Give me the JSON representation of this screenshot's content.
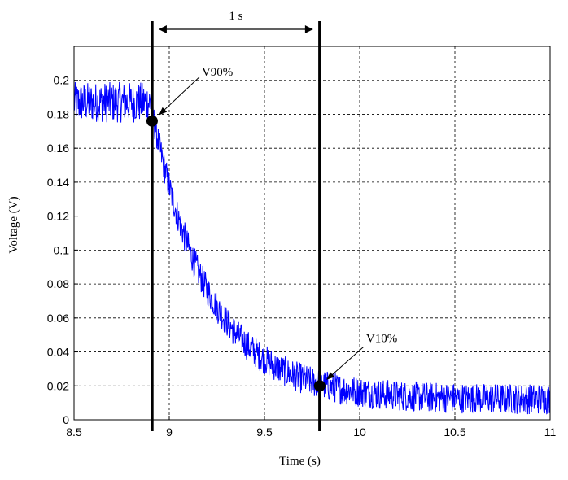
{
  "chart_data": {
    "type": "line",
    "xlabel": "Time (s)",
    "ylabel": "Voltage (V)",
    "xlim": [
      8.5,
      11
    ],
    "ylim": [
      0,
      0.22
    ],
    "x_ticks": [
      8.5,
      9,
      9.5,
      10,
      10.5,
      11
    ],
    "x_tick_labels": [
      "8.5",
      "9",
      "9.5",
      "10",
      "10.5",
      "11"
    ],
    "y_ticks": [
      0,
      0.02,
      0.04,
      0.06,
      0.08,
      0.1,
      0.12,
      0.14,
      0.16,
      0.18,
      0.2
    ],
    "y_tick_labels": [
      "0",
      "0.02",
      "0.04",
      "0.06",
      "0.08",
      "0.1",
      "0.12",
      "0.14",
      "0.16",
      "0.18",
      "0.2"
    ],
    "grid": true,
    "series_color": "#0000ff",
    "signal": {
      "high_level": 0.187,
      "low_level": 0.012,
      "fall_start": 8.9,
      "time_constant": 0.3,
      "noise": 0.012,
      "step": 0.002
    },
    "markers": [
      {
        "label": "V90%",
        "x": 8.91,
        "y": 0.176
      },
      {
        "label": "V10%",
        "x": 9.79,
        "y": 0.02
      }
    ],
    "vertical_lines": [
      8.91,
      9.79
    ],
    "interval": {
      "from": 8.91,
      "to": 9.79,
      "label": "1 s"
    }
  }
}
